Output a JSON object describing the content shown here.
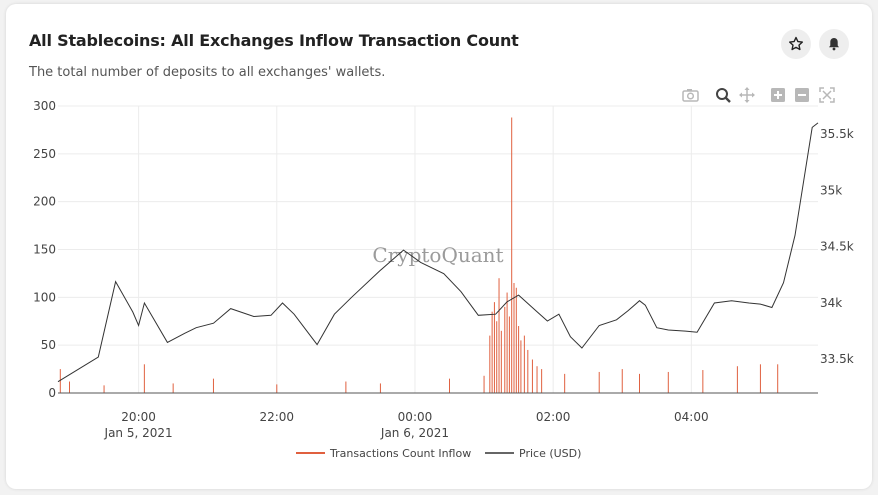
{
  "header": {
    "title": "All Stablecoins: All Exchanges Inflow Transaction Count",
    "subtitle": "The total number of deposits to all exchanges' wallets."
  },
  "actions": {
    "favorite_icon": "star-icon",
    "alert_icon": "bell-icon"
  },
  "toolbar": {
    "icons": [
      "camera-icon",
      "zoom-icon",
      "pan-icon",
      "zoom-in-icon",
      "zoom-out-icon",
      "reset-axes-icon"
    ]
  },
  "watermark": "CryptoQuant",
  "colors": {
    "inflow": "#e0603f",
    "price": "#333333"
  },
  "chart_data": {
    "type": "line",
    "x_range": [
      "2021-01-05 18:50",
      "2021-01-06 05:50"
    ],
    "x_ticks": [
      {
        "time": "2021-01-05 20:00",
        "label": "20:00",
        "sublabel": "Jan 5, 2021"
      },
      {
        "time": "2021-01-05 22:00",
        "label": "22:00",
        "sublabel": ""
      },
      {
        "time": "2021-01-06 00:00",
        "label": "00:00",
        "sublabel": "Jan 6, 2021"
      },
      {
        "time": "2021-01-06 02:00",
        "label": "02:00",
        "sublabel": ""
      },
      {
        "time": "2021-01-06 04:00",
        "label": "04:00",
        "sublabel": ""
      }
    ],
    "y_left": {
      "range": [
        0,
        300
      ],
      "ticks": [
        0,
        50,
        100,
        150,
        200,
        250,
        300
      ]
    },
    "y_right": {
      "range": [
        33200,
        35750
      ],
      "ticks": [
        33500,
        34000,
        34500,
        35000,
        35500
      ],
      "tick_labels": [
        "33.5k",
        "34k",
        "34.5k",
        "35k",
        "35.5k"
      ]
    },
    "grid": true,
    "legend_position": "bottom-center",
    "series": [
      {
        "name": "Transactions Count Inflow",
        "axis": "left",
        "style": "bars",
        "points": [
          [
            "2021-01-05 18:52",
            25
          ],
          [
            "2021-01-05 19:00",
            12
          ],
          [
            "2021-01-05 19:30",
            8
          ],
          [
            "2021-01-05 20:05",
            30
          ],
          [
            "2021-01-05 20:30",
            10
          ],
          [
            "2021-01-05 21:05",
            15
          ],
          [
            "2021-01-05 22:00",
            9
          ],
          [
            "2021-01-05 23:00",
            12
          ],
          [
            "2021-01-05 23:30",
            10
          ],
          [
            "2021-01-06 00:30",
            15
          ],
          [
            "2021-01-06 01:00",
            18
          ],
          [
            "2021-01-06 01:05",
            60
          ],
          [
            "2021-01-06 01:07",
            85
          ],
          [
            "2021-01-06 01:09",
            95
          ],
          [
            "2021-01-06 01:11",
            75
          ],
          [
            "2021-01-06 01:13",
            120
          ],
          [
            "2021-01-06 01:15",
            65
          ],
          [
            "2021-01-06 01:18",
            90
          ],
          [
            "2021-01-06 01:20",
            105
          ],
          [
            "2021-01-06 01:22",
            80
          ],
          [
            "2021-01-06 01:24",
            288
          ],
          [
            "2021-01-06 01:26",
            115
          ],
          [
            "2021-01-06 01:28",
            110
          ],
          [
            "2021-01-06 01:30",
            70
          ],
          [
            "2021-01-06 01:32",
            55
          ],
          [
            "2021-01-06 01:35",
            60
          ],
          [
            "2021-01-06 01:38",
            45
          ],
          [
            "2021-01-06 01:42",
            35
          ],
          [
            "2021-01-06 01:46",
            28
          ],
          [
            "2021-01-06 01:50",
            25
          ],
          [
            "2021-01-06 02:10",
            20
          ],
          [
            "2021-01-06 02:40",
            22
          ],
          [
            "2021-01-06 03:00",
            25
          ],
          [
            "2021-01-06 03:15",
            20
          ],
          [
            "2021-01-06 03:40",
            22
          ],
          [
            "2021-01-06 04:10",
            24
          ],
          [
            "2021-01-06 04:40",
            28
          ],
          [
            "2021-01-06 05:00",
            30
          ],
          [
            "2021-01-06 05:15",
            30
          ]
        ]
      },
      {
        "name": "Price (USD)",
        "axis": "right",
        "style": "line",
        "points": [
          [
            "2021-01-05 18:50",
            33300
          ],
          [
            "2021-01-05 19:25",
            33520
          ],
          [
            "2021-01-05 19:40",
            34190
          ],
          [
            "2021-01-05 19:55",
            33920
          ],
          [
            "2021-01-05 20:00",
            33800
          ],
          [
            "2021-01-05 20:05",
            34000
          ],
          [
            "2021-01-05 20:25",
            33650
          ],
          [
            "2021-01-05 20:40",
            33730
          ],
          [
            "2021-01-05 20:50",
            33780
          ],
          [
            "2021-01-05 21:05",
            33820
          ],
          [
            "2021-01-05 21:20",
            33950
          ],
          [
            "2021-01-05 21:40",
            33880
          ],
          [
            "2021-01-05 21:55",
            33890
          ],
          [
            "2021-01-05 22:05",
            34000
          ],
          [
            "2021-01-05 22:15",
            33900
          ],
          [
            "2021-01-05 22:35",
            33630
          ],
          [
            "2021-01-05 22:50",
            33900
          ],
          [
            "2021-01-05 23:05",
            34050
          ],
          [
            "2021-01-05 23:30",
            34290
          ],
          [
            "2021-01-05 23:50",
            34470
          ],
          [
            "2021-01-06 00:05",
            34360
          ],
          [
            "2021-01-06 00:25",
            34260
          ],
          [
            "2021-01-06 00:40",
            34100
          ],
          [
            "2021-01-06 00:55",
            33890
          ],
          [
            "2021-01-06 01:10",
            33900
          ],
          [
            "2021-01-06 01:20",
            34010
          ],
          [
            "2021-01-06 01:30",
            34070
          ],
          [
            "2021-01-06 01:45",
            33930
          ],
          [
            "2021-01-06 01:55",
            33840
          ],
          [
            "2021-01-06 02:05",
            33900
          ],
          [
            "2021-01-06 02:15",
            33700
          ],
          [
            "2021-01-06 02:25",
            33600
          ],
          [
            "2021-01-06 02:40",
            33800
          ],
          [
            "2021-01-06 02:55",
            33850
          ],
          [
            "2021-01-06 03:05",
            33930
          ],
          [
            "2021-01-06 03:15",
            34020
          ],
          [
            "2021-01-06 03:20",
            33980
          ],
          [
            "2021-01-06 03:30",
            33780
          ],
          [
            "2021-01-06 03:40",
            33760
          ],
          [
            "2021-01-06 03:55",
            33750
          ],
          [
            "2021-01-06 04:05",
            33740
          ],
          [
            "2021-01-06 04:20",
            34000
          ],
          [
            "2021-01-06 04:35",
            34020
          ],
          [
            "2021-01-06 04:50",
            34000
          ],
          [
            "2021-01-06 05:00",
            33990
          ],
          [
            "2021-01-06 05:10",
            33960
          ],
          [
            "2021-01-06 05:20",
            34180
          ],
          [
            "2021-01-06 05:30",
            34600
          ],
          [
            "2021-01-06 05:45",
            35560
          ],
          [
            "2021-01-06 05:50",
            35600
          ]
        ]
      }
    ]
  }
}
